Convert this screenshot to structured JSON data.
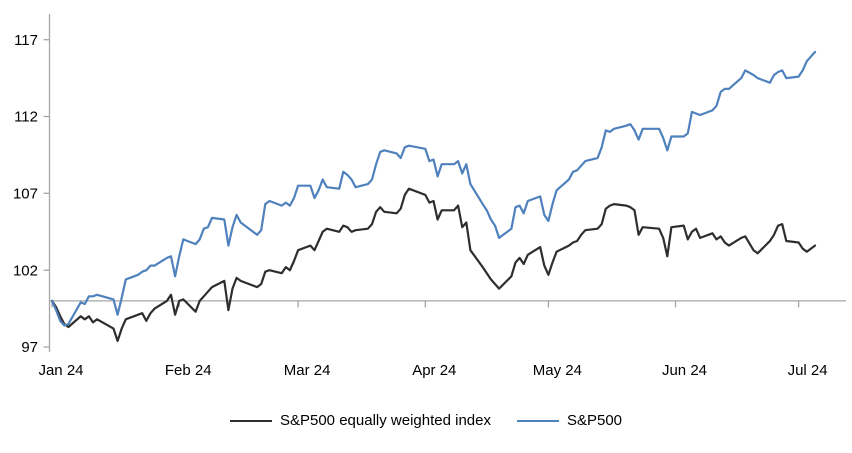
{
  "chart_data": {
    "type": "line",
    "title": "",
    "xlabel": "",
    "ylabel": "",
    "grid": "none",
    "legend_position": "bottom-center",
    "baseline_value": 100,
    "y_axis": {
      "min": 97,
      "max": 117,
      "ticks": [
        97,
        102,
        107,
        112,
        117
      ],
      "tick_labels": [
        "97",
        "102",
        "107",
        "112",
        "117"
      ]
    },
    "x_axis": {
      "tick_labels": [
        "Jan 24",
        "Feb 24",
        "Mar 24",
        "Apr 24",
        "May 24",
        "Jun 24",
        "Jul 24"
      ],
      "tick_day_offsets": [
        0,
        31,
        60,
        91,
        121,
        152,
        182
      ],
      "total_days": 186
    },
    "axis_color": "#a6a6a6",
    "series": [
      {
        "id": "sp500-equal-weight",
        "name": "S&P500 equally weighted index",
        "color": "#2e2e2e",
        "points": [
          [
            0,
            100
          ],
          [
            1,
            99.6
          ],
          [
            2,
            99
          ],
          [
            3,
            98.5
          ],
          [
            4,
            98.3
          ],
          [
            7,
            99
          ],
          [
            8,
            98.8
          ],
          [
            9,
            99
          ],
          [
            10,
            98.6
          ],
          [
            11,
            98.8
          ],
          [
            15,
            98.2
          ],
          [
            16,
            97.4
          ],
          [
            17,
            98.2
          ],
          [
            18,
            98.8
          ],
          [
            21,
            99.1
          ],
          [
            22,
            99.2
          ],
          [
            23,
            98.7
          ],
          [
            24,
            99.2
          ],
          [
            25,
            99.5
          ],
          [
            28,
            100
          ],
          [
            29,
            100.4
          ],
          [
            30,
            99.1
          ],
          [
            31,
            100
          ],
          [
            32,
            100.1
          ],
          [
            35,
            99.3
          ],
          [
            36,
            100
          ],
          [
            37,
            100.3
          ],
          [
            38,
            100.6
          ],
          [
            39,
            100.9
          ],
          [
            42,
            101.3
          ],
          [
            43,
            99.4
          ],
          [
            44,
            100.8
          ],
          [
            45,
            101.5
          ],
          [
            46,
            101.3
          ],
          [
            50,
            100.9
          ],
          [
            51,
            101.1
          ],
          [
            52,
            101.9
          ],
          [
            53,
            102
          ],
          [
            56,
            101.8
          ],
          [
            57,
            102.2
          ],
          [
            58,
            102
          ],
          [
            59,
            102.6
          ],
          [
            60,
            103.3
          ],
          [
            63,
            103.6
          ],
          [
            64,
            103.3
          ],
          [
            65,
            103.9
          ],
          [
            66,
            104.5
          ],
          [
            67,
            104.7
          ],
          [
            70,
            104.5
          ],
          [
            71,
            104.9
          ],
          [
            72,
            104.8
          ],
          [
            73,
            104.5
          ],
          [
            74,
            104.6
          ],
          [
            77,
            104.7
          ],
          [
            78,
            105
          ],
          [
            79,
            105.8
          ],
          [
            80,
            106.1
          ],
          [
            81,
            105.8
          ],
          [
            84,
            105.7
          ],
          [
            85,
            106
          ],
          [
            86,
            106.9
          ],
          [
            87,
            107.3
          ],
          [
            91,
            106.9
          ],
          [
            92,
            106.4
          ],
          [
            93,
            106.5
          ],
          [
            94,
            105.3
          ],
          [
            95,
            105.9
          ],
          [
            98,
            105.9
          ],
          [
            99,
            106.2
          ],
          [
            100,
            104.8
          ],
          [
            101,
            105.1
          ],
          [
            102,
            103.3
          ],
          [
            105,
            102.2
          ],
          [
            106,
            101.8
          ],
          [
            107,
            101.4
          ],
          [
            108,
            101.1
          ],
          [
            109,
            100.8
          ],
          [
            112,
            101.6
          ],
          [
            113,
            102.5
          ],
          [
            114,
            102.8
          ],
          [
            115,
            102.4
          ],
          [
            116,
            103
          ],
          [
            119,
            103.5
          ],
          [
            120,
            102.3
          ],
          [
            121,
            101.7
          ],
          [
            122,
            102.5
          ],
          [
            123,
            103.2
          ],
          [
            126,
            103.6
          ],
          [
            127,
            103.8
          ],
          [
            128,
            103.9
          ],
          [
            129,
            104.3
          ],
          [
            130,
            104.6
          ],
          [
            133,
            104.7
          ],
          [
            134,
            105
          ],
          [
            135,
            106
          ],
          [
            136,
            106.2
          ],
          [
            137,
            106.3
          ],
          [
            140,
            106.2
          ],
          [
            141,
            106.1
          ],
          [
            142,
            105.9
          ],
          [
            143,
            104.3
          ],
          [
            144,
            104.8
          ],
          [
            148,
            104.7
          ],
          [
            149,
            104.1
          ],
          [
            150,
            102.9
          ],
          [
            151,
            104.8
          ],
          [
            154,
            104.9
          ],
          [
            155,
            104
          ],
          [
            156,
            104.5
          ],
          [
            157,
            104.7
          ],
          [
            158,
            104.1
          ],
          [
            161,
            104.4
          ],
          [
            162,
            104
          ],
          [
            163,
            104.2
          ],
          [
            164,
            103.8
          ],
          [
            165,
            103.6
          ],
          [
            168,
            104.1
          ],
          [
            169,
            104.2
          ],
          [
            171,
            103.3
          ],
          [
            172,
            103.1
          ],
          [
            175,
            103.9
          ],
          [
            176,
            104.3
          ],
          [
            177,
            104.9
          ],
          [
            178,
            105
          ],
          [
            179,
            103.9
          ],
          [
            182,
            103.8
          ],
          [
            183,
            103.4
          ],
          [
            184,
            103.2
          ],
          [
            186,
            103.6
          ]
        ]
      },
      {
        "id": "sp500",
        "name": "S&P500",
        "color": "#4f81bd",
        "points": [
          [
            0,
            100
          ],
          [
            1,
            99.4
          ],
          [
            2,
            98.7
          ],
          [
            3,
            98.4
          ],
          [
            4,
            98.5
          ],
          [
            7,
            99.9
          ],
          [
            8,
            99.8
          ],
          [
            9,
            100.3
          ],
          [
            10,
            100.3
          ],
          [
            11,
            100.4
          ],
          [
            15,
            100.1
          ],
          [
            16,
            99.1
          ],
          [
            17,
            100.2
          ],
          [
            18,
            101.4
          ],
          [
            21,
            101.7
          ],
          [
            22,
            101.9
          ],
          [
            23,
            102
          ],
          [
            24,
            102.3
          ],
          [
            25,
            102.3
          ],
          [
            28,
            102.8
          ],
          [
            29,
            102.9
          ],
          [
            30,
            101.6
          ],
          [
            31,
            102.9
          ],
          [
            32,
            104
          ],
          [
            35,
            103.7
          ],
          [
            36,
            104
          ],
          [
            37,
            104.7
          ],
          [
            38,
            104.8
          ],
          [
            39,
            105.4
          ],
          [
            42,
            105.3
          ],
          [
            43,
            103.6
          ],
          [
            44,
            104.8
          ],
          [
            45,
            105.6
          ],
          [
            46,
            105.1
          ],
          [
            50,
            104.3
          ],
          [
            51,
            104.6
          ],
          [
            52,
            106.3
          ],
          [
            53,
            106.5
          ],
          [
            56,
            106.2
          ],
          [
            57,
            106.4
          ],
          [
            58,
            106.2
          ],
          [
            59,
            106.7
          ],
          [
            60,
            107.5
          ],
          [
            63,
            107.5
          ],
          [
            64,
            106.7
          ],
          [
            65,
            107.2
          ],
          [
            66,
            107.9
          ],
          [
            67,
            107.4
          ],
          [
            70,
            107.3
          ],
          [
            71,
            108.4
          ],
          [
            72,
            108.2
          ],
          [
            73,
            107.9
          ],
          [
            74,
            107.4
          ],
          [
            77,
            107.6
          ],
          [
            78,
            107.9
          ],
          [
            79,
            108.9
          ],
          [
            80,
            109.7
          ],
          [
            81,
            109.8
          ],
          [
            84,
            109.6
          ],
          [
            85,
            109.3
          ],
          [
            86,
            110
          ],
          [
            87,
            110.1
          ],
          [
            91,
            109.9
          ],
          [
            92,
            109.1
          ],
          [
            93,
            109.2
          ],
          [
            94,
            108.1
          ],
          [
            95,
            108.9
          ],
          [
            98,
            108.9
          ],
          [
            99,
            109.1
          ],
          [
            100,
            108.3
          ],
          [
            101,
            108.9
          ],
          [
            102,
            107.6
          ],
          [
            105,
            106.3
          ],
          [
            106,
            105.9
          ],
          [
            107,
            105.3
          ],
          [
            108,
            104.9
          ],
          [
            109,
            104.1
          ],
          [
            112,
            104.7
          ],
          [
            113,
            106.1
          ],
          [
            114,
            106.2
          ],
          [
            115,
            105.7
          ],
          [
            116,
            106.5
          ],
          [
            119,
            106.8
          ],
          [
            120,
            105.6
          ],
          [
            121,
            105.2
          ],
          [
            122,
            106.3
          ],
          [
            123,
            107.2
          ],
          [
            126,
            107.9
          ],
          [
            127,
            108.4
          ],
          [
            128,
            108.5
          ],
          [
            129,
            108.8
          ],
          [
            130,
            109.1
          ],
          [
            133,
            109.3
          ],
          [
            134,
            110
          ],
          [
            135,
            111.1
          ],
          [
            136,
            111
          ],
          [
            137,
            111.2
          ],
          [
            140,
            111.4
          ],
          [
            141,
            111.5
          ],
          [
            142,
            111.1
          ],
          [
            143,
            110.5
          ],
          [
            144,
            111.2
          ],
          [
            148,
            111.2
          ],
          [
            149,
            110.6
          ],
          [
            150,
            109.8
          ],
          [
            151,
            110.7
          ],
          [
            154,
            110.7
          ],
          [
            155,
            110.9
          ],
          [
            156,
            112.3
          ],
          [
            157,
            112.2
          ],
          [
            158,
            112.1
          ],
          [
            161,
            112.4
          ],
          [
            162,
            112.7
          ],
          [
            163,
            113.6
          ],
          [
            164,
            113.8
          ],
          [
            165,
            113.8
          ],
          [
            168,
            114.5
          ],
          [
            169,
            115
          ],
          [
            171,
            114.7
          ],
          [
            172,
            114.5
          ],
          [
            175,
            114.2
          ],
          [
            176,
            114.7
          ],
          [
            177,
            114.9
          ],
          [
            178,
            115
          ],
          [
            179,
            114.5
          ],
          [
            182,
            114.6
          ],
          [
            183,
            115
          ],
          [
            184,
            115.6
          ],
          [
            186,
            116.2
          ]
        ]
      }
    ],
    "legend": [
      "S&P500 equally weighted index",
      "S&P500"
    ]
  }
}
